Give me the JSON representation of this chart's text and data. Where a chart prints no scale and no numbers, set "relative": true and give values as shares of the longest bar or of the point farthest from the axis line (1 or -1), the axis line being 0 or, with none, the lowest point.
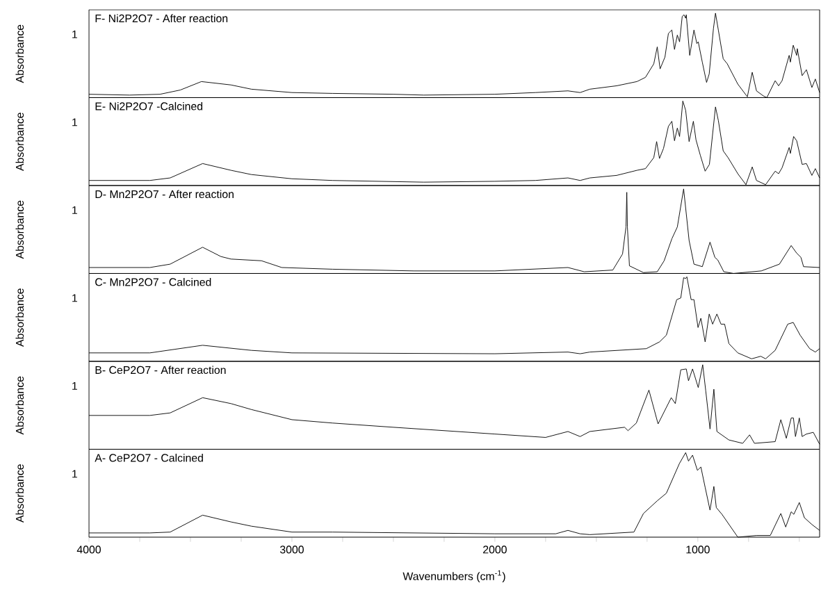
{
  "chart_data": [
    {
      "type": "line",
      "title": "F- Ni2P2O7 - After reaction",
      "ylabel": "Absorbance",
      "annotations": [
        "1"
      ],
      "relative": true,
      "color": "#000000",
      "xlim": [
        4000,
        400
      ],
      "x": [
        4000,
        3800,
        3650,
        3550,
        3446,
        3300,
        3200,
        3000,
        2800,
        2500,
        2350,
        2000,
        1800,
        1640,
        1580,
        1532,
        1400,
        1300,
        1258,
        1217,
        1200,
        1186,
        1162,
        1145,
        1128,
        1115,
        1101,
        1090,
        1077,
        1068,
        1060,
        1057,
        1040,
        1019,
        1005,
        998,
        978,
        957,
        944,
        923,
        913,
        899,
        875,
        855,
        803,
        756,
        732,
        711,
        677,
        660,
        619,
        602,
        585,
        550,
        544,
        530,
        513,
        510,
        486,
        465,
        438,
        421,
        400
      ],
      "values": [
        0.04,
        0.03,
        0.04,
        0.09,
        0.19,
        0.15,
        0.1,
        0.06,
        0.05,
        0.04,
        0.03,
        0.04,
        0.06,
        0.08,
        0.06,
        0.1,
        0.14,
        0.19,
        0.24,
        0.4,
        0.6,
        0.34,
        0.48,
        0.76,
        0.8,
        0.57,
        0.74,
        0.66,
        0.96,
        0.98,
        0.94,
        0.98,
        0.5,
        0.8,
        0.64,
        0.66,
        0.42,
        0.18,
        0.28,
        0.82,
        1.0,
        0.8,
        0.46,
        0.4,
        0.16,
        0.01,
        0.3,
        0.08,
        0.02,
        0,
        0.2,
        0.14,
        0.2,
        0.5,
        0.42,
        0.62,
        0.5,
        0.58,
        0.26,
        0.33,
        0.12,
        0.22,
        0.06
      ]
    },
    {
      "type": "line",
      "title": "E- Ni2P2O7 -Calcined",
      "ylabel": "Absorbance",
      "annotations": [
        "1"
      ],
      "relative": true,
      "color": "#000000",
      "xlim": [
        4000,
        400
      ],
      "x": [
        4000,
        3700,
        3600,
        3440,
        3300,
        3200,
        3000,
        2800,
        2350,
        2000,
        1800,
        1640,
        1580,
        1532,
        1400,
        1300,
        1258,
        1217,
        1203,
        1189,
        1169,
        1145,
        1128,
        1115,
        1101,
        1090,
        1074,
        1060,
        1043,
        1022,
        1009,
        988,
        964,
        943,
        913,
        899,
        875,
        851,
        803,
        763,
        732,
        711,
        666,
        619,
        602,
        585,
        550,
        544,
        528,
        513,
        486,
        465,
        438,
        421,
        400
      ],
      "values": [
        0.06,
        0.06,
        0.09,
        0.26,
        0.18,
        0.13,
        0.08,
        0.06,
        0.04,
        0.05,
        0.06,
        0.09,
        0.06,
        0.09,
        0.12,
        0.18,
        0.2,
        0.33,
        0.52,
        0.32,
        0.44,
        0.7,
        0.76,
        0.53,
        0.68,
        0.58,
        1.0,
        0.89,
        0.52,
        0.76,
        0.54,
        0.36,
        0.17,
        0.25,
        0.93,
        0.77,
        0.41,
        0.33,
        0.14,
        0.01,
        0.22,
        0.06,
        0.01,
        0.17,
        0.14,
        0.21,
        0.45,
        0.38,
        0.58,
        0.53,
        0.25,
        0.26,
        0.12,
        0.2,
        0.09
      ]
    },
    {
      "type": "line",
      "title": "D- Mn2P2O7 - After reaction",
      "ylabel": "Absorbance",
      "annotations": [
        "1"
      ],
      "relative": true,
      "color": "#000000",
      "xlim": [
        4000,
        400
      ],
      "x": [
        4000,
        3700,
        3600,
        3440,
        3350,
        3300,
        3150,
        3050,
        2800,
        2400,
        2000,
        1640,
        1560,
        1419,
        1371,
        1354,
        1350,
        1347,
        1337,
        1268,
        1200,
        1166,
        1128,
        1101,
        1070,
        1043,
        1019,
        978,
        940,
        916,
        902,
        872,
        824,
        687,
        598,
        540,
        513,
        492,
        479,
        400
      ],
      "values": [
        0.07,
        0.07,
        0.11,
        0.31,
        0.2,
        0.17,
        0.15,
        0.07,
        0.05,
        0.03,
        0.03,
        0.07,
        0.02,
        0.04,
        0.23,
        0.55,
        0.96,
        0.55,
        0.09,
        0.01,
        0.02,
        0.15,
        0.41,
        0.55,
        1.0,
        0.39,
        0.11,
        0.08,
        0.37,
        0.19,
        0.16,
        0.02,
        0,
        0.03,
        0.11,
        0.33,
        0.24,
        0.19,
        0.08,
        0.07
      ]
    },
    {
      "type": "line",
      "title": "C- Mn2P2O7 - Calcined",
      "ylabel": "Absorbance",
      "annotations": [
        "1"
      ],
      "relative": true,
      "color": "#000000",
      "xlim": [
        4000,
        400
      ],
      "x": [
        4000,
        3700,
        3440,
        3200,
        3000,
        2000,
        1640,
        1580,
        1532,
        1254,
        1189,
        1155,
        1104,
        1084,
        1070,
        1060,
        1054,
        1033,
        1019,
        999,
        985,
        964,
        944,
        927,
        906,
        886,
        868,
        847,
        803,
        735,
        690,
        666,
        619,
        557,
        530,
        496,
        449,
        421,
        400
      ],
      "values": [
        0.1,
        0.1,
        0.19,
        0.13,
        0.1,
        0.09,
        0.11,
        0.09,
        0.11,
        0.15,
        0.23,
        0.31,
        0.73,
        0.75,
        0.99,
        0.98,
        1.0,
        0.73,
        0.73,
        0.4,
        0.51,
        0.23,
        0.56,
        0.44,
        0.56,
        0.44,
        0.44,
        0.21,
        0.1,
        0.03,
        0.06,
        0.03,
        0.13,
        0.44,
        0.46,
        0.31,
        0.15,
        0.11,
        0.15
      ]
    },
    {
      "type": "line",
      "title": "B- CeP2O7 - After reaction",
      "ylabel": "Absorbance",
      "annotations": [
        "1"
      ],
      "relative": true,
      "color": "#000000",
      "xlim": [
        4000,
        400
      ],
      "x": [
        4000,
        3700,
        3600,
        3440,
        3300,
        3200,
        3000,
        2800,
        2500,
        2000,
        1750,
        1640,
        1580,
        1532,
        1361,
        1344,
        1303,
        1241,
        1196,
        1131,
        1111,
        1084,
        1057,
        1046,
        1026,
        998,
        976,
        961,
        940,
        921,
        906,
        847,
        779,
        745,
        721,
        619,
        591,
        564,
        540,
        529,
        519,
        500,
        486,
        465,
        431,
        400
      ],
      "values": [
        0.4,
        0.4,
        0.43,
        0.61,
        0.54,
        0.47,
        0.35,
        0.31,
        0.26,
        0.18,
        0.14,
        0.21,
        0.15,
        0.21,
        0.26,
        0.22,
        0.31,
        0.7,
        0.3,
        0.61,
        0.54,
        0.94,
        0.95,
        0.81,
        0.95,
        0.73,
        1.0,
        0.69,
        0.24,
        0.71,
        0.21,
        0.11,
        0.07,
        0.17,
        0.07,
        0.09,
        0.35,
        0.13,
        0.37,
        0.37,
        0.15,
        0.37,
        0.15,
        0.18,
        0.2,
        0.06
      ]
    },
    {
      "type": "line",
      "title": "A- CeP2O7 - Calcined",
      "ylabel": "Absorbance",
      "xlabel": "Wavenumbers (cm$^{-1}$)",
      "annotations": [
        "1"
      ],
      "relative": true,
      "color": "#000000",
      "xlim": [
        4000,
        400
      ],
      "xticks": [
        4000,
        {
          "value": 3750,
          "label": null
        },
        {
          "value": 3500,
          "label": null
        },
        {
          "value": 3250,
          "label": null
        },
        3000,
        {
          "value": 2750,
          "label": null
        },
        {
          "value": 2500,
          "label": null
        },
        {
          "value": 2250,
          "label": null
        },
        2000,
        {
          "value": 1750,
          "label": null
        },
        {
          "value": 1500,
          "label": null
        },
        {
          "value": 1250,
          "label": null
        },
        1000,
        {
          "value": 750,
          "label": null
        },
        {
          "value": 500,
          "label": null
        }
      ],
      "x": [
        4000,
        3700,
        3600,
        3440,
        3300,
        3200,
        3000,
        2800,
        2000,
        1700,
        1640,
        1580,
        1532,
        1315,
        1268,
        1200,
        1155,
        1091,
        1060,
        1046,
        1026,
        1002,
        985,
        964,
        940,
        921,
        909,
        881,
        803,
        711,
        643,
        591,
        567,
        540,
        527,
        500,
        475,
        438,
        400
      ],
      "values": [
        0.05,
        0.05,
        0.06,
        0.26,
        0.18,
        0.13,
        0.06,
        0.06,
        0.04,
        0.04,
        0.08,
        0.04,
        0.03,
        0.06,
        0.28,
        0.43,
        0.52,
        0.87,
        1.0,
        0.9,
        0.97,
        0.79,
        0.83,
        0.59,
        0.32,
        0.6,
        0.35,
        0.27,
        0,
        0.02,
        0.02,
        0.28,
        0.12,
        0.3,
        0.27,
        0.41,
        0.23,
        0.15,
        0.08
      ]
    }
  ]
}
